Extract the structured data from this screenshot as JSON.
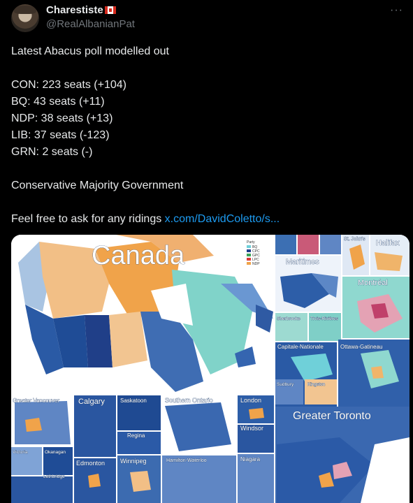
{
  "author": {
    "display_name": "Charestiste",
    "flag_icon": "canada-flag-icon",
    "handle": "@RealAlbanianPat",
    "more_label": "···"
  },
  "tweet": {
    "headline": "Latest Abacus poll modelled out",
    "results": [
      "CON: 223 seats (+104)",
      "BQ: 43 seats (+11)",
      "NDP: 38 seats (+13)",
      "LIB: 37 seats (-123)",
      "GRN: 2 seats (-)"
    ],
    "conclusion": "Conservative Majority Government",
    "cta_text": "Feel free to ask for any ridings",
    "link_text": "x.com/DavidColetto/s..."
  },
  "map": {
    "title": "Canada",
    "legend_title": "Party",
    "legend": [
      {
        "label": "BQ",
        "color": "#6fd0d9"
      },
      {
        "label": "CPC",
        "color": "#1f3e8c"
      },
      {
        "label": "GPC",
        "color": "#3aa357"
      },
      {
        "label": "LPC",
        "color": "#d83a3a"
      },
      {
        "label": "NDP",
        "color": "#f0a34a"
      }
    ],
    "insets": {
      "st_johns": "St. John's",
      "halifax": "Halifax",
      "maritimes": "Maritimes",
      "montreal": "Montréal",
      "sherbrooke": "Sherbrooke",
      "trois_rivieres": "Trois-Rivières",
      "capitale_nationale": "Capitale-Nationale",
      "ottawa_gatineau": "Ottawa-Gatineau",
      "sudbury": "Sudbury",
      "kingston": "Kingston",
      "greater_vancouver": "Greater Vancouver",
      "calgary": "Calgary",
      "saskatoon": "Saskatoon",
      "southern_ontario": "Southern Ontario",
      "london": "London",
      "regina": "Regina",
      "windsor": "Windsor",
      "greater_toronto": "Greater Toronto",
      "victoria": "Victoria",
      "okanagan": "Okanagan",
      "edmonton": "Edmonton",
      "winnipeg": "Winnipeg",
      "hamilton_waterloo": "Hamilton-Waterloo",
      "niagara": "Niagara",
      "lethbridge": "Lethbridge"
    }
  }
}
